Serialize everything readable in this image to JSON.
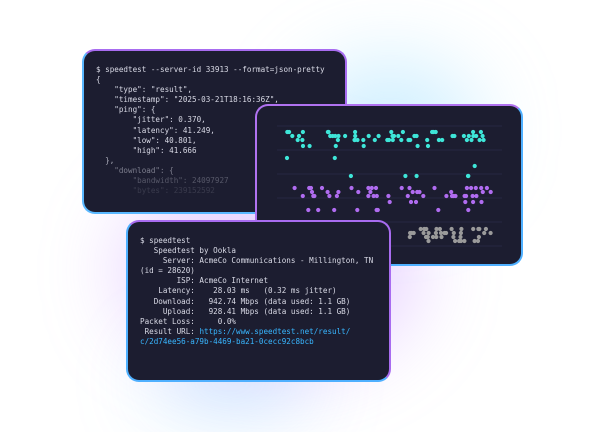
{
  "json_window": {
    "lines": [
      "$ speedtest --server-id 33913 --format=json-pretty",
      "{",
      "    \"type\": \"result\",",
      "    \"timestamp\": \"2025-03-21T18:16:36Z\",",
      "    \"ping\": {",
      "        \"jitter\": 0.370,",
      "        \"latency\": 41.249,",
      "        \"low\": 40.801,",
      "        \"high\": 41.666",
      "  },",
      "    \"download\": {",
      "        \"bandwidth\": 24097927",
      "        \"bytes\": 239152592"
    ]
  },
  "chart_window": {
    "series_colors": [
      "#3ee6d8",
      "#b06cf0",
      "#9a9a9a"
    ]
  },
  "result_window": {
    "lines": [
      "$ speedtest",
      "",
      "   Speedtest by Ookla",
      "",
      "     Server: AcmeCo Communications - Millington, TN",
      "(id = 28620)",
      "        ISP: AcmeCo Internet",
      "    Latency:    28.03 ms   (0.32 ms jitter)",
      "   Download:   942.74 Mbps (data used: 1.1 GB)",
      "     Upload:   928.41 Mbps (data used: 1.1 GB)",
      "Packet Loss:     0.0%"
    ],
    "url_label": " Result URL: ",
    "url_line1": "https://www.speedtest.net/result/",
    "url_line2": "c/2d74ee56-a79b-4469-ba21-0cecc92c8bcb"
  }
}
